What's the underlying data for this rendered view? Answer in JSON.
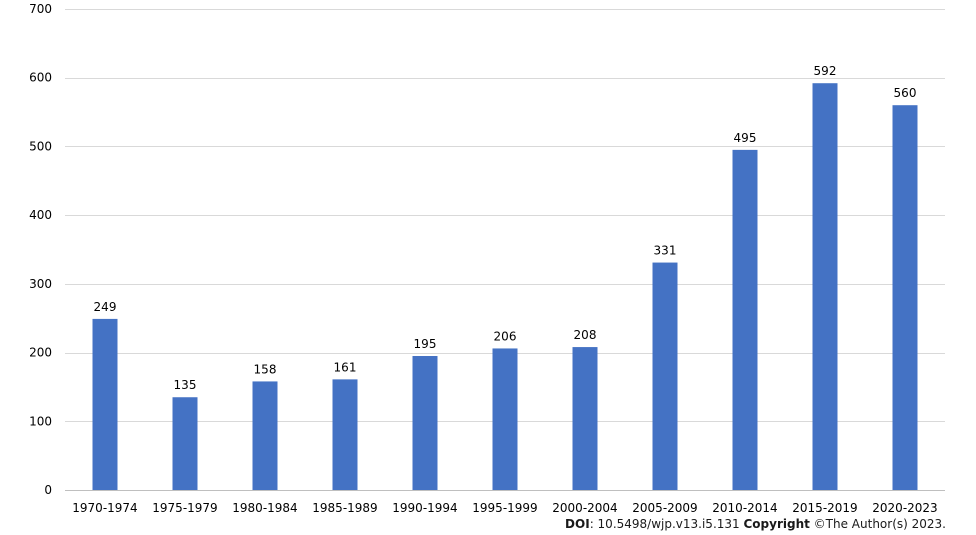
{
  "chart_data": {
    "type": "bar",
    "categories": [
      "1970-1974",
      "1975-1979",
      "1980-1984",
      "1985-1989",
      "1990-1994",
      "1995-1999",
      "2000-2004",
      "2005-2009",
      "2010-2014",
      "2015-2019",
      "2020-2023"
    ],
    "values": [
      249,
      135,
      158,
      161,
      195,
      206,
      208,
      331,
      495,
      592,
      560
    ],
    "title": "",
    "xlabel": "",
    "ylabel": "",
    "ylim": [
      0,
      700
    ],
    "yticks": [
      0,
      100,
      200,
      300,
      400,
      500,
      600,
      700
    ],
    "grid": "horizontal",
    "legend": "none",
    "bar_color": "#4472C4",
    "grid_color": "#D9D9D9",
    "data_labels": true
  },
  "footer": {
    "doi_label": "DOI",
    "doi_value": ": 10.5498/wjp.v13.i5.131 ",
    "copyright_label": "Copyright",
    "copyright_value": " ©The Author(s) 2023."
  }
}
